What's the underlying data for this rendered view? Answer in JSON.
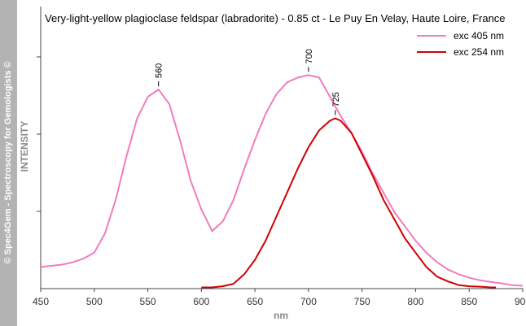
{
  "watermark": "© Spec4Gem - Spectroscopy for Gemologists ©",
  "chart_data": {
    "type": "line",
    "title": "Very-light-yellow plagioclase feldspar (labradorite) -  0.85 ct - Le Puy En Velay, Haute Loire, France",
    "xlabel": "nm",
    "ylabel": "INTENSITY",
    "xlim": [
      450,
      900
    ],
    "ylim": [
      0,
      1
    ],
    "x_ticks": [
      450,
      500,
      550,
      600,
      650,
      700,
      750,
      800,
      850,
      900
    ],
    "grid": false,
    "legend_position": "top-right",
    "series": [
      {
        "name": "exc 405 nm",
        "color": "#f07cc0",
        "x": [
          450,
          460,
          470,
          480,
          490,
          500,
          510,
          520,
          530,
          540,
          550,
          560,
          570,
          580,
          590,
          600,
          610,
          620,
          630,
          640,
          650,
          660,
          670,
          680,
          690,
          700,
          710,
          720,
          730,
          740,
          750,
          760,
          770,
          780,
          790,
          800,
          810,
          820,
          830,
          840,
          850,
          860,
          870,
          880,
          890,
          900
        ],
        "y": [
          0.09,
          0.095,
          0.1,
          0.11,
          0.125,
          0.15,
          0.23,
          0.37,
          0.55,
          0.71,
          0.8,
          0.83,
          0.77,
          0.62,
          0.45,
          0.33,
          0.24,
          0.28,
          0.37,
          0.5,
          0.62,
          0.73,
          0.81,
          0.86,
          0.88,
          0.89,
          0.88,
          0.8,
          0.72,
          0.65,
          0.57,
          0.48,
          0.4,
          0.32,
          0.26,
          0.2,
          0.15,
          0.11,
          0.08,
          0.06,
          0.045,
          0.035,
          0.028,
          0.022,
          0.015,
          0.012
        ]
      },
      {
        "name": "exc 254 nm",
        "color": "#d10000",
        "x": [
          600,
          610,
          620,
          630,
          640,
          650,
          660,
          670,
          680,
          690,
          700,
          710,
          720,
          725,
          730,
          740,
          750,
          760,
          770,
          780,
          790,
          800,
          810,
          820,
          830,
          840,
          850,
          860,
          870,
          875
        ],
        "y": [
          0.005,
          0.005,
          0.01,
          0.02,
          0.06,
          0.12,
          0.2,
          0.3,
          0.4,
          0.5,
          0.59,
          0.66,
          0.7,
          0.71,
          0.7,
          0.65,
          0.56,
          0.47,
          0.37,
          0.29,
          0.21,
          0.15,
          0.09,
          0.05,
          0.03,
          0.015,
          0.01,
          0.008,
          0.005,
          0.005
        ]
      }
    ],
    "annotations": [
      {
        "text": "560",
        "x": 560,
        "y": 0.83
      },
      {
        "text": "700",
        "x": 700,
        "y": 0.89
      },
      {
        "text": "725",
        "x": 725,
        "y": 0.71
      }
    ]
  }
}
